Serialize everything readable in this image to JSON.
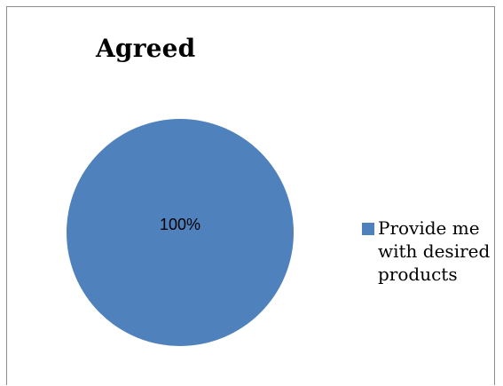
{
  "chart_data": {
    "type": "pie",
    "title": "Agreed",
    "categories": [
      "Provide me with desired products"
    ],
    "values": [
      100
    ],
    "data_labels": [
      "100%"
    ],
    "colors": [
      "#4f81bd"
    ],
    "legend_position": "right"
  }
}
